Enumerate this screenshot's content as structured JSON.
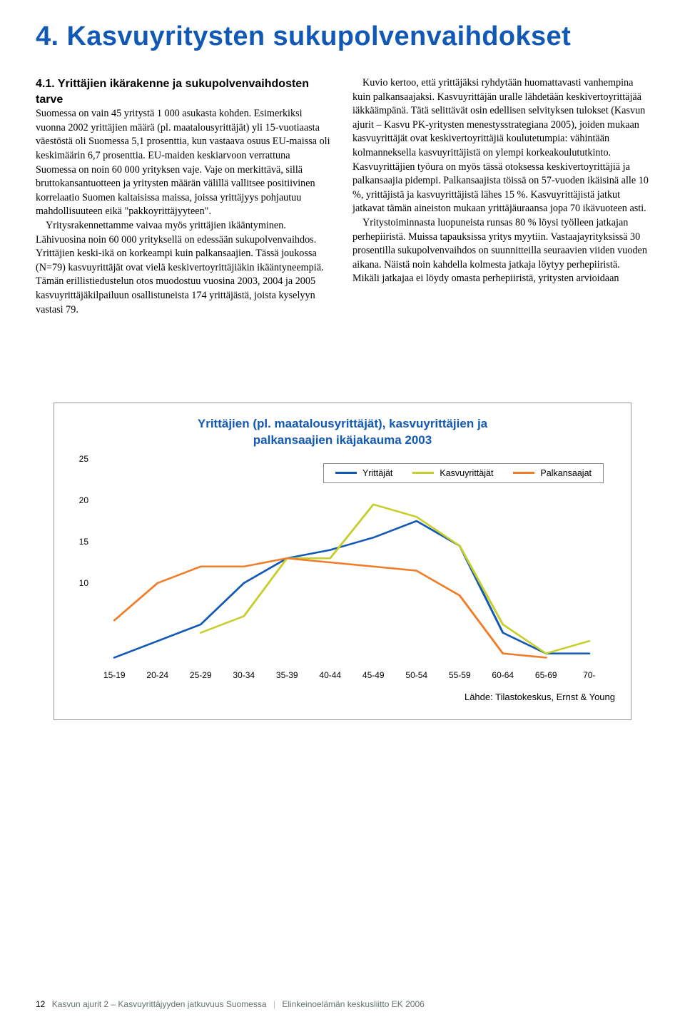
{
  "chapter_title": "4. Kasvuyritysten sukupolvenvaihdokset",
  "section_heading_line1": "4.1. Yrittäjien ikärakenne ja sukupolvenvaihdosten",
  "section_heading_line2": "tarve",
  "col_left_p1": "Suomessa on vain 45 yritystä 1 000 asukasta kohden. Esimerkiksi vuonna 2002 yrittäjien määrä (pl. maatalousyrittäjät) yli 15-vuotiaasta väestöstä oli Suomessa 5,1 prosenttia, kun vastaava osuus EU-maissa oli keskimäärin 6,7 prosenttia. EU-maiden keskiarvoon verrattuna Suomessa on noin 60 000 yrityksen vaje. Vaje on merkittävä, sillä bruttokansantuotteen ja yritysten määrän välillä vallitsee positiivinen korrelaatio Suomen kaltaisissa maissa, joissa yrittäjyys pohjautuu mahdollisuuteen eikä \"pakkoyrittäjyyteen\".",
  "col_left_p2": "Yritysrakennettamme vaivaa myös yrittäjien ikääntyminen. Lähivuosina noin 60 000 yrityksellä on edessään sukupolvenvaihdos. Yrittäjien keski-ikä on korkeampi kuin palkansaajien. Tässä joukossa (N=79) kasvuyrittäjät ovat vielä keskivertoyrittäjiäkin ikääntyneempiä. Tämän erillistiedustelun otos muodostuu vuosina 2003, 2004 ja 2005 kasvuyrittäjäkilpailuun osallistuneista 174 yrittäjästä, joista kyselyyn vastasi 79.",
  "col_right_p1": "Kuvio kertoo, että yrittäjäksi ryhdytään huomattavasti vanhempina kuin palkansaajaksi. Kasvuyrittäjän uralle lähdetään keskivertoyrittäjää iäkkäämpänä. Tätä selittävät osin edellisen selvityksen tulokset (Kasvun ajurit – Kasvu PK-yritysten menestysstrategiana 2005), joiden mukaan kasvuyrittäjät ovat keskivertoyrittäjiä koulutetumpia: vähintään kolmanneksella kasvuyrittäjistä on ylempi korkeakoulututkinto. Kasvuyrittäjien työura on myös tässä otoksessa keskivertoyrittäjiä ja palkansaajia pidempi. Palkansaajista töissä on 57-vuoden ikäisinä alle 10 %, yrittäjistä ja kasvuyrittäjistä lähes 15 %. Kasvuyrittäjistä jatkut jatkavat tämän aineiston mukaan yrittäjäuraansa jopa 70 ikävuoteen asti.",
  "col_right_p2": "Yritystoiminnasta luopuneista runsas 80 % löysi työlleen jatkajan perhepiiristä. Muissa tapauksissa yritys myytiin. Vastaajayrityksissä 30 prosentilla sukupolvenvaihdos on suunnitteilla seuraavien viiden vuoden aikana. Näistä noin kahdella kolmesta jatkaja löytyy perhepiiristä. Mikäli jatkajaa ei löydy omasta perhepiiristä, yritysten arvioidaan",
  "chart": {
    "type": "line",
    "title_line1": "Yrittäjien (pl. maatalousyrittäjät), kasvuyrittäjien ja",
    "title_line2": "palkansaajien ikäjakauma 2003",
    "categories": [
      "15-19",
      "20-24",
      "25-29",
      "30-34",
      "35-39",
      "40-44",
      "45-49",
      "50-54",
      "55-59",
      "60-64",
      "65-69",
      "70-"
    ],
    "series": [
      {
        "name": "Yrittäjät",
        "color": "#1259b5",
        "values": [
          1.0,
          3.0,
          5.0,
          10.0,
          13.0,
          14.0,
          15.5,
          17.5,
          14.5,
          4.0,
          1.5,
          1.5
        ]
      },
      {
        "name": "Kasvuyrittäjät",
        "color": "#c7cf2e",
        "values": [
          null,
          null,
          4.0,
          6.0,
          13.0,
          13.0,
          19.5,
          18.0,
          14.5,
          5.0,
          1.5,
          3.0
        ]
      },
      {
        "name": "Palkansaajat",
        "color": "#ef7d2a",
        "values": [
          5.5,
          10.0,
          12.0,
          12.0,
          13.0,
          12.5,
          12.0,
          11.5,
          8.5,
          1.5,
          1.0,
          null
        ]
      }
    ],
    "ylim": [
      0,
      25
    ],
    "ytick_step": 5,
    "y_visible_labels": [
      10,
      15,
      20,
      25
    ],
    "line_width": 2.5,
    "background_color": "#ffffff",
    "source_label": "Lähde: Tilastokeskus, Ernst & Young"
  },
  "footer": {
    "page_number": "12",
    "doc_title": "Kasvun ajurit 2 – Kasvuyrittäjyyden jatkuvuus Suomessa",
    "publisher": "Elinkeinoelämän keskusliitto EK 2006"
  }
}
